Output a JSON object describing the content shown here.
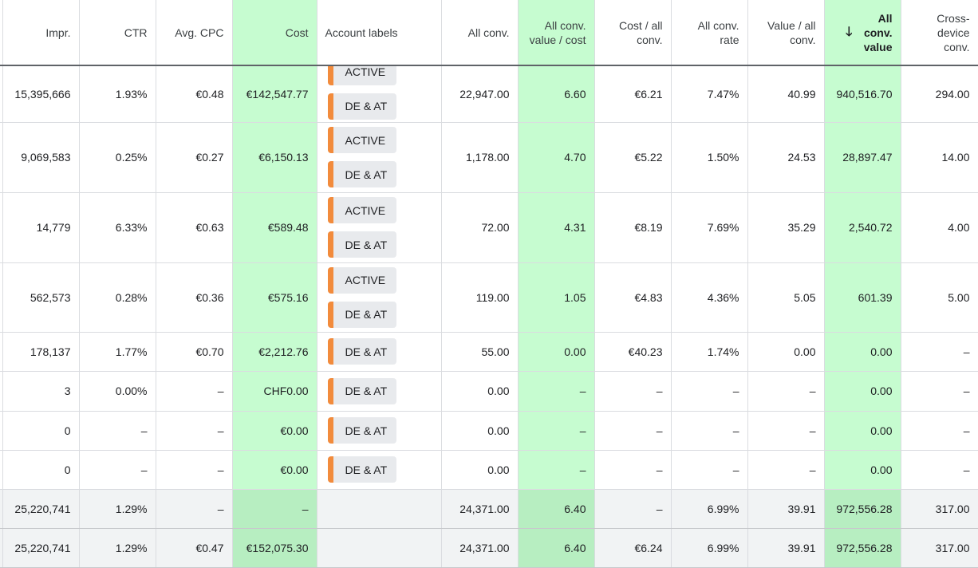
{
  "columns": [
    {
      "label": "Impr."
    },
    {
      "label": "CTR"
    },
    {
      "label": "Avg. CPC"
    },
    {
      "label": "Cost"
    },
    {
      "label": "Account labels"
    },
    {
      "label": "All conv."
    },
    {
      "label": "All conv. value / cost"
    },
    {
      "label": "Cost / all conv."
    },
    {
      "label": "All conv. rate"
    },
    {
      "label": "Value / all conv."
    },
    {
      "label": "All conv. value"
    },
    {
      "label": "Cross-device conv."
    }
  ],
  "sort_icon": "arrow-down-icon",
  "rows": [
    {
      "impr": "15,395,666",
      "ctr": "1.93%",
      "cpc": "€0.48",
      "cost": "€142,547.77",
      "labels": [
        "ACTIVE",
        "DE & AT"
      ],
      "conv": "22,947.00",
      "vpc": "6.60",
      "cpa": "€6.21",
      "rate": "7.47%",
      "vpa": "40.99",
      "value": "940,516.70",
      "cross": "294.00"
    },
    {
      "impr": "9,069,583",
      "ctr": "0.25%",
      "cpc": "€0.27",
      "cost": "€6,150.13",
      "labels": [
        "ACTIVE",
        "DE & AT"
      ],
      "conv": "1,178.00",
      "vpc": "4.70",
      "cpa": "€5.22",
      "rate": "1.50%",
      "vpa": "24.53",
      "value": "28,897.47",
      "cross": "14.00"
    },
    {
      "impr": "14,779",
      "ctr": "6.33%",
      "cpc": "€0.63",
      "cost": "€589.48",
      "labels": [
        "ACTIVE",
        "DE & AT"
      ],
      "conv": "72.00",
      "vpc": "4.31",
      "cpa": "€8.19",
      "rate": "7.69%",
      "vpa": "35.29",
      "value": "2,540.72",
      "cross": "4.00"
    },
    {
      "impr": "562,573",
      "ctr": "0.28%",
      "cpc": "€0.36",
      "cost": "€575.16",
      "labels": [
        "ACTIVE",
        "DE & AT"
      ],
      "conv": "119.00",
      "vpc": "1.05",
      "cpa": "€4.83",
      "rate": "4.36%",
      "vpa": "5.05",
      "value": "601.39",
      "cross": "5.00"
    },
    {
      "impr": "178,137",
      "ctr": "1.77%",
      "cpc": "€0.70",
      "cost": "€2,212.76",
      "labels": [
        "DE & AT"
      ],
      "conv": "55.00",
      "vpc": "0.00",
      "cpa": "€40.23",
      "rate": "1.74%",
      "vpa": "0.00",
      "value": "0.00",
      "cross": "–"
    },
    {
      "impr": "3",
      "ctr": "0.00%",
      "cpc": "–",
      "cost": "CHF0.00",
      "labels": [
        "DE & AT"
      ],
      "conv": "0.00",
      "vpc": "–",
      "cpa": "–",
      "rate": "–",
      "vpa": "–",
      "value": "0.00",
      "cross": "–"
    },
    {
      "impr": "0",
      "ctr": "–",
      "cpc": "–",
      "cost": "€0.00",
      "labels": [
        "DE & AT"
      ],
      "conv": "0.00",
      "vpc": "–",
      "cpa": "–",
      "rate": "–",
      "vpa": "–",
      "value": "0.00",
      "cross": "–"
    },
    {
      "impr": "0",
      "ctr": "–",
      "cpc": "–",
      "cost": "€0.00",
      "labels": [
        "DE & AT"
      ],
      "conv": "0.00",
      "vpc": "–",
      "cpa": "–",
      "rate": "–",
      "vpa": "–",
      "value": "0.00",
      "cross": "–"
    }
  ],
  "summary": [
    {
      "impr": "25,220,741",
      "ctr": "1.29%",
      "cpc": "–",
      "cost": "–",
      "conv": "24,371.00",
      "vpc": "6.40",
      "cpa": "–",
      "rate": "6.99%",
      "vpa": "39.91",
      "value": "972,556.28",
      "cross": "317.00"
    },
    {
      "impr": "25,220,741",
      "ctr": "1.29%",
      "cpc": "€0.47",
      "cost": "€152,075.30",
      "conv": "24,371.00",
      "vpc": "6.40",
      "cpa": "€6.24",
      "rate": "6.99%",
      "vpa": "39.91",
      "value": "972,556.28",
      "cross": "317.00"
    }
  ],
  "colors": {
    "highlight": "#c6fcd0",
    "label_accent": "#f28b3c",
    "chip_bg": "#e8eaed"
  }
}
